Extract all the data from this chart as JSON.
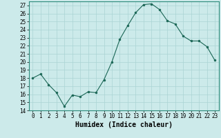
{
  "x": [
    0,
    1,
    2,
    3,
    4,
    5,
    6,
    7,
    8,
    9,
    10,
    11,
    12,
    13,
    14,
    15,
    16,
    17,
    18,
    19,
    20,
    21,
    22,
    23
  ],
  "y": [
    18,
    18.5,
    17.2,
    16.2,
    14.5,
    15.9,
    15.7,
    16.3,
    16.2,
    17.8,
    20.0,
    22.8,
    24.5,
    26.1,
    27.1,
    27.2,
    26.5,
    25.1,
    24.7,
    23.2,
    22.6,
    22.6,
    21.9,
    20.2
  ],
  "xlabel": "Humidex (Indice chaleur)",
  "ylabel": "",
  "ylim": [
    14,
    27.5
  ],
  "yticks": [
    14,
    15,
    16,
    17,
    18,
    19,
    20,
    21,
    22,
    23,
    24,
    25,
    26,
    27
  ],
  "xticks": [
    0,
    1,
    2,
    3,
    4,
    5,
    6,
    7,
    8,
    9,
    10,
    11,
    12,
    13,
    14,
    15,
    16,
    17,
    18,
    19,
    20,
    21,
    22,
    23
  ],
  "line_color": "#1a6655",
  "marker_color": "#1a6655",
  "bg_color": "#cceaea",
  "grid_color": "#aad4d4",
  "tick_fontsize": 5.5,
  "label_fontsize": 7.0
}
